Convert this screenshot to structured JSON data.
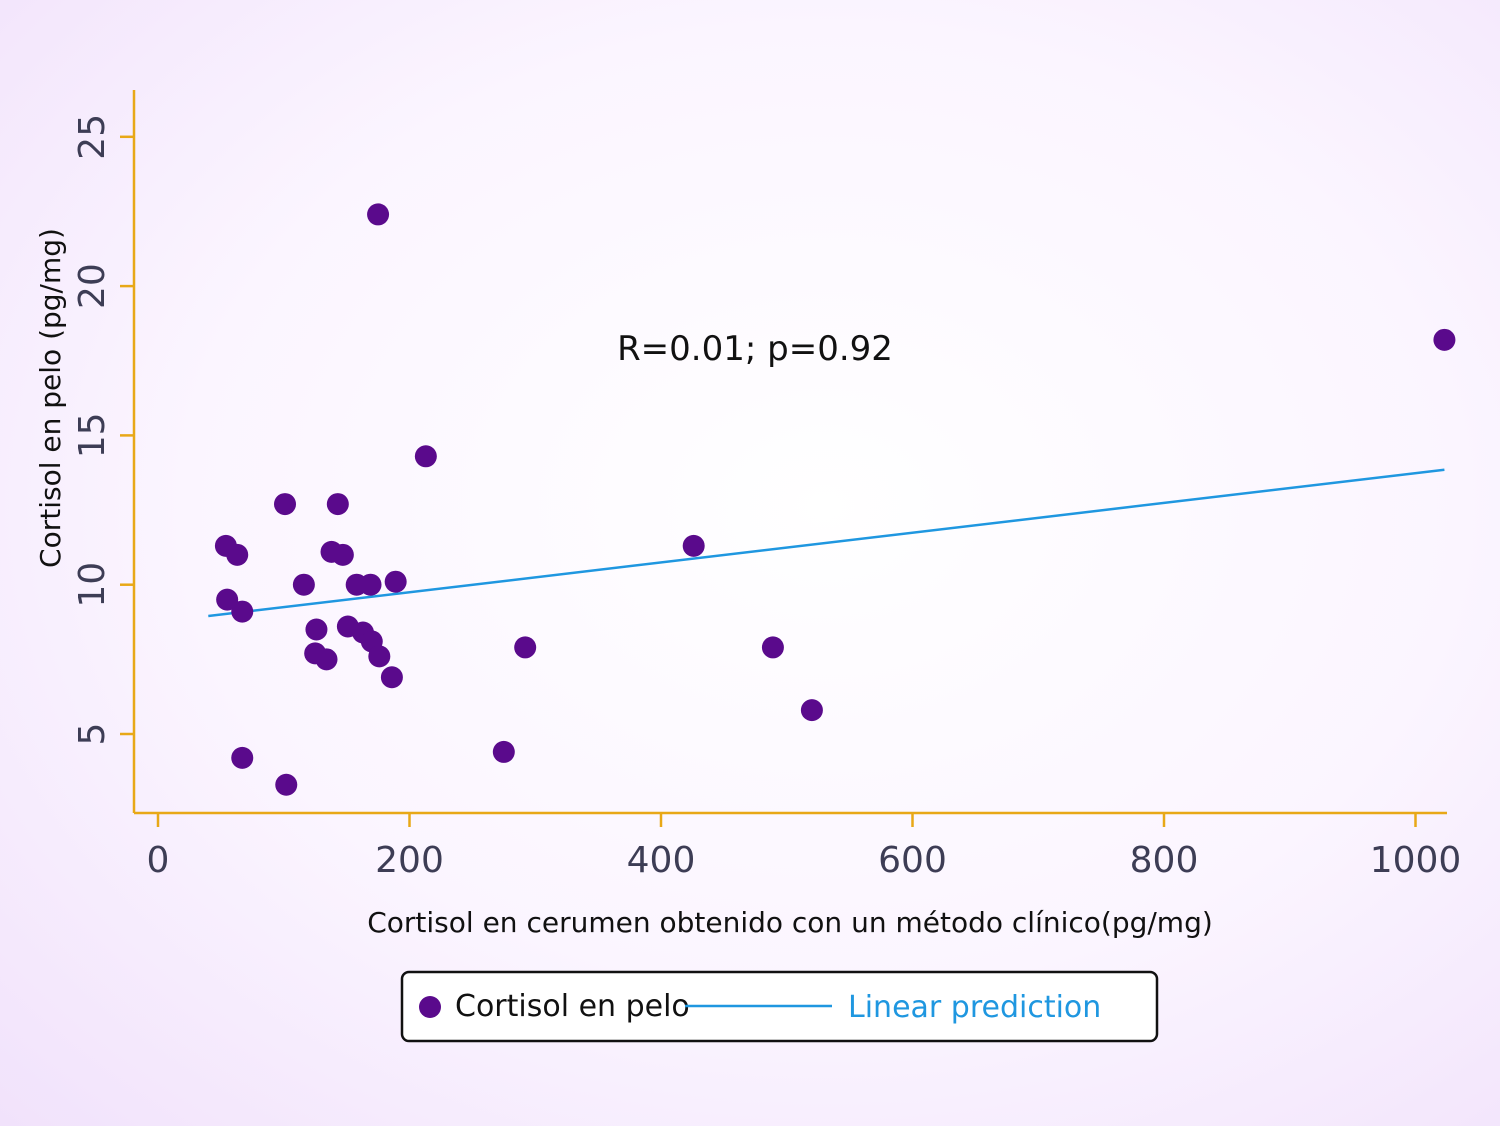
{
  "chart_data": {
    "type": "scatter",
    "xlabel": "Cortisol en cerumen obtenido con un método clínico(pg/mg)",
    "ylabel": "Cortisol en pelo (pg/mg)",
    "xlim": [
      -20,
      1025
    ],
    "ylim": [
      2.5,
      26.5
    ],
    "x_ticks": [
      0,
      200,
      400,
      600,
      800,
      1000
    ],
    "y_ticks": [
      5,
      10,
      15,
      20,
      25
    ],
    "annotation": "R=0.01; p=0.92",
    "grid": false,
    "legend_position": "bottom",
    "series": [
      {
        "name": "Cortisol en pelo",
        "type": "scatter",
        "color": "#5a0a8c",
        "points": [
          [
            175,
            22.4
          ],
          [
            1023,
            18.2
          ],
          [
            213,
            14.3
          ],
          [
            101,
            12.7
          ],
          [
            143,
            12.7
          ],
          [
            54,
            11.3
          ],
          [
            63,
            11.0
          ],
          [
            426,
            11.3
          ],
          [
            138,
            11.1
          ],
          [
            147,
            11.0
          ],
          [
            116,
            10.0
          ],
          [
            158,
            10.0
          ],
          [
            169,
            10.0
          ],
          [
            189,
            10.1
          ],
          [
            55,
            9.5
          ],
          [
            67,
            9.1
          ],
          [
            126,
            8.5
          ],
          [
            151,
            8.6
          ],
          [
            163,
            8.4
          ],
          [
            170,
            8.1
          ],
          [
            125,
            7.7
          ],
          [
            134,
            7.5
          ],
          [
            176,
            7.6
          ],
          [
            186,
            6.9
          ],
          [
            292,
            7.9
          ],
          [
            489,
            7.9
          ],
          [
            520,
            5.8
          ],
          [
            275,
            4.4
          ],
          [
            67,
            4.2
          ],
          [
            102,
            3.3
          ]
        ]
      },
      {
        "name": "Linear prediction",
        "type": "line",
        "color": "#1f97e0",
        "points": [
          [
            40,
            8.95
          ],
          [
            1023,
            13.85
          ]
        ]
      }
    ]
  },
  "axis_color": "#e8a817"
}
